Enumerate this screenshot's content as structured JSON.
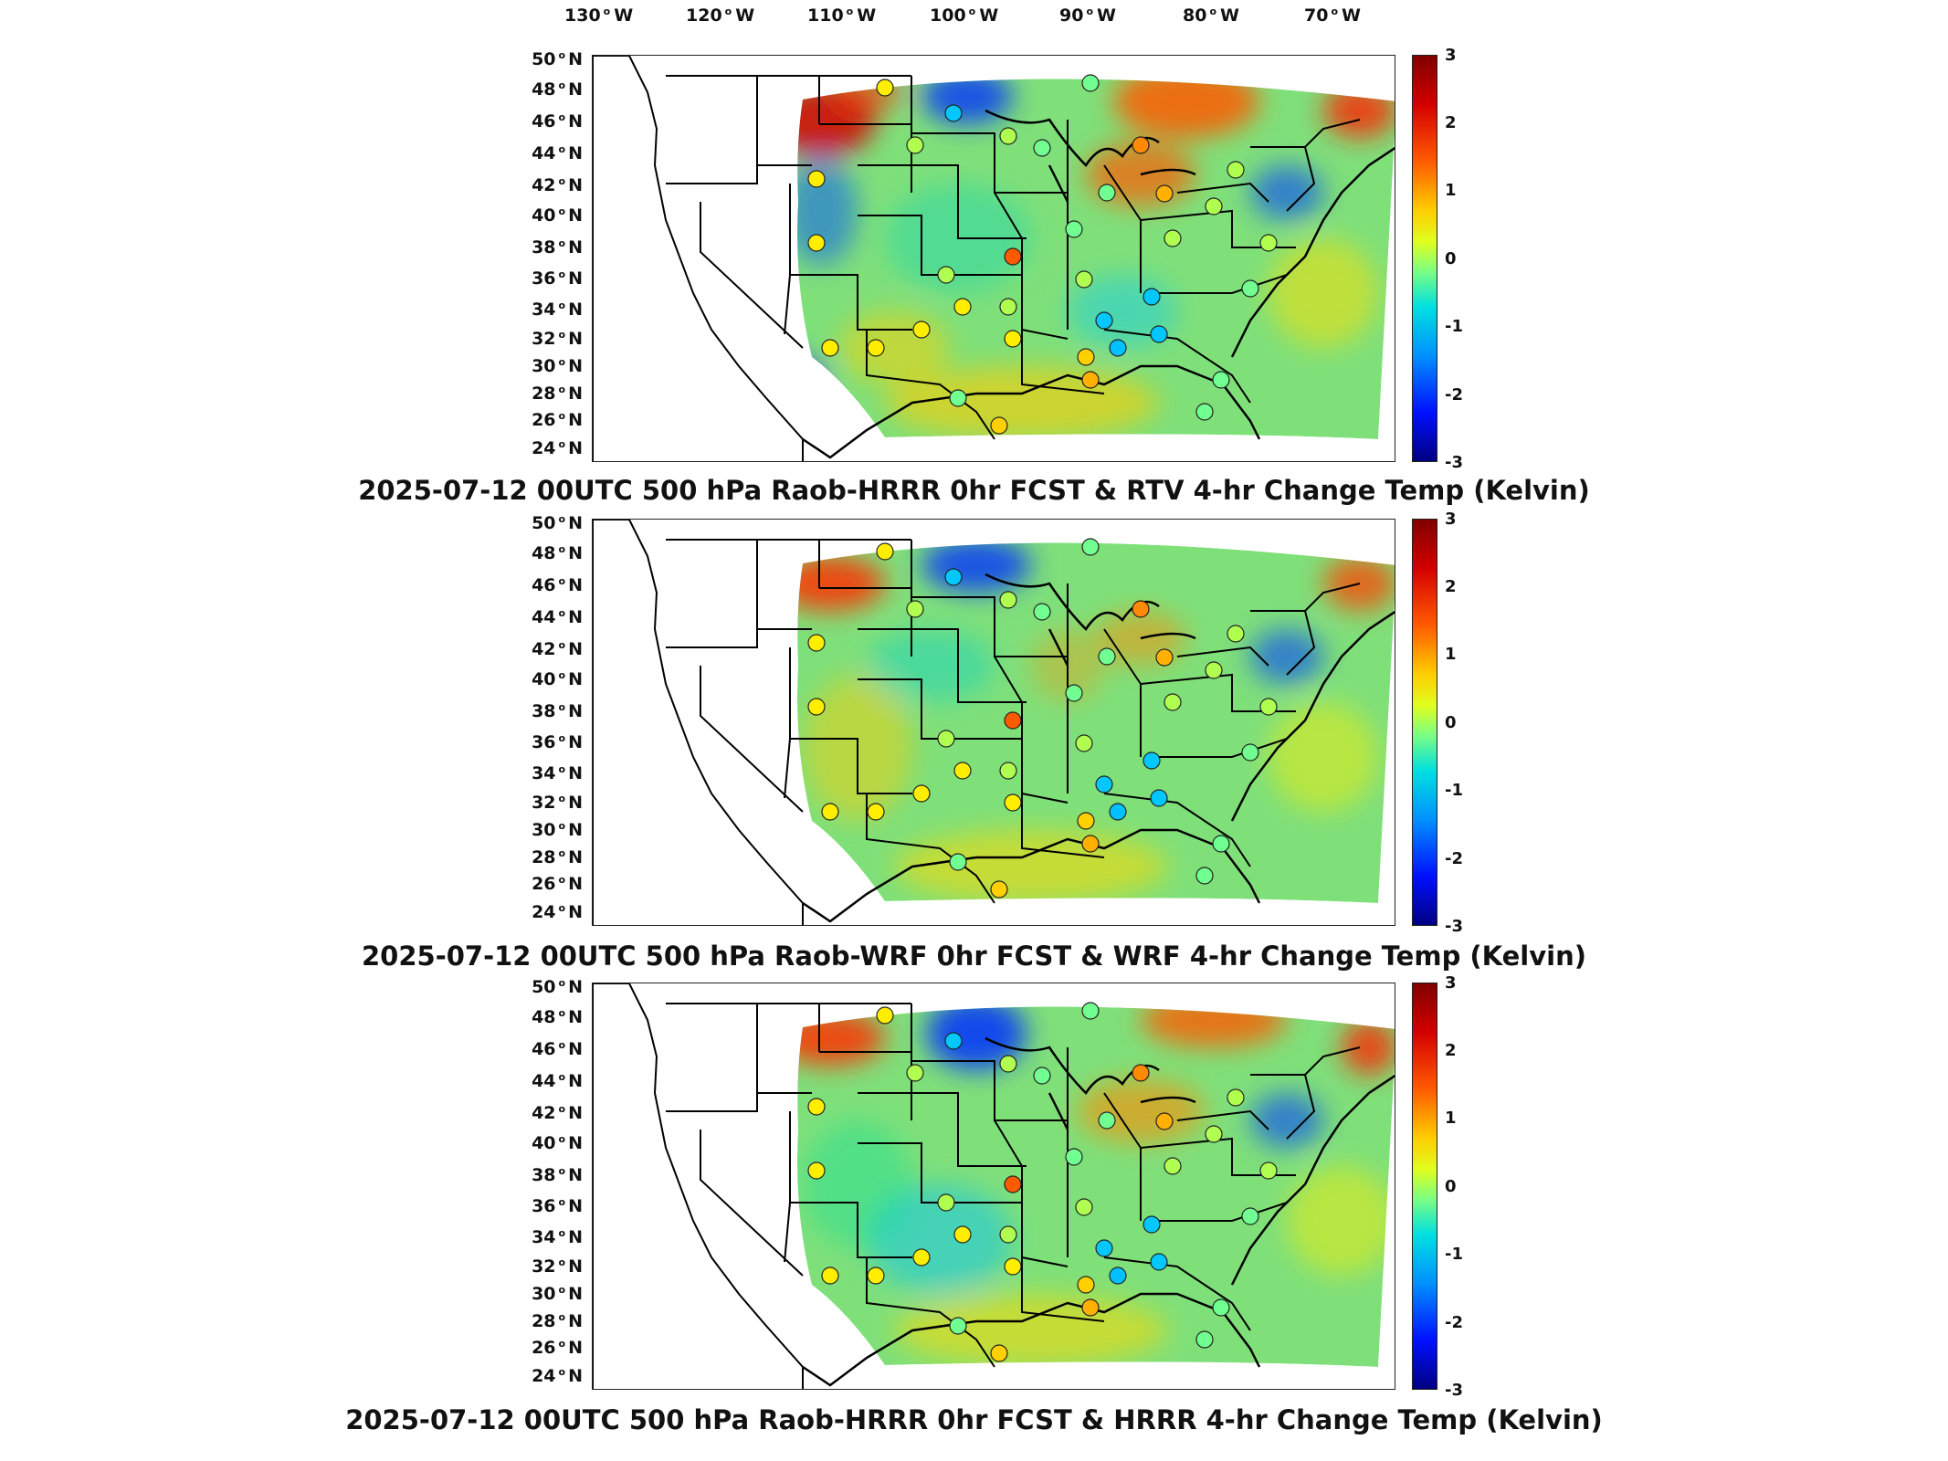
{
  "longitude_labels": [
    {
      "deg": "130",
      "hemi": "W"
    },
    {
      "deg": "120",
      "hemi": "W"
    },
    {
      "deg": "110",
      "hemi": "W"
    },
    {
      "deg": "100",
      "hemi": "W"
    },
    {
      "deg": "90",
      "hemi": "W"
    },
    {
      "deg": "80",
      "hemi": "W"
    },
    {
      "deg": "70",
      "hemi": "W"
    }
  ],
  "latitude_labels": [
    {
      "deg": "50",
      "hemi": "N"
    },
    {
      "deg": "48",
      "hemi": "N"
    },
    {
      "deg": "46",
      "hemi": "N"
    },
    {
      "deg": "44",
      "hemi": "N"
    },
    {
      "deg": "42",
      "hemi": "N"
    },
    {
      "deg": "40",
      "hemi": "N"
    },
    {
      "deg": "38",
      "hemi": "N"
    },
    {
      "deg": "36",
      "hemi": "N"
    },
    {
      "deg": "34",
      "hemi": "N"
    },
    {
      "deg": "32",
      "hemi": "N"
    },
    {
      "deg": "30",
      "hemi": "N"
    },
    {
      "deg": "28",
      "hemi": "N"
    },
    {
      "deg": "26",
      "hemi": "N"
    },
    {
      "deg": "24",
      "hemi": "N"
    }
  ],
  "colorbar": {
    "ticks": [
      "3",
      "2",
      "1",
      "0",
      "-1",
      "-2",
      "-3"
    ],
    "range": [
      -3,
      3
    ],
    "colormap": "jet",
    "colors": [
      "#800000",
      "#ff0000",
      "#ffff00",
      "#00ffff",
      "#0000ff",
      "#000080"
    ]
  },
  "panels": [
    {
      "title": "2025-07-12 00UTC 500 hPa Raob-HRRR 0hr FCST & RTV 4-hr Change Temp (Kelvin)"
    },
    {
      "title": "2025-07-12 00UTC 500 hPa Raob-WRF 0hr FCST & WRF 4-hr Change Temp (Kelvin)"
    },
    {
      "title": "2025-07-12 00UTC 500 hPa Raob-HRRR 0hr FCST & HRRR 4-hr Change Temp (Kelvin)"
    }
  ],
  "colors": {
    "background": "#ffffff",
    "borders": "#000000",
    "field_base": "#7fe07a"
  }
}
